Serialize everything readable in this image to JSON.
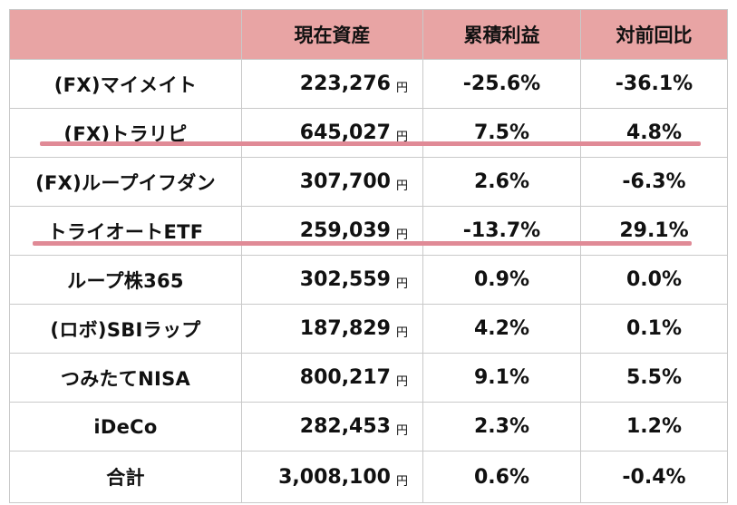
{
  "table": {
    "headers": [
      "",
      "現在資産",
      "累積利益",
      "対前回比"
    ],
    "unit": "円",
    "rows": [
      {
        "name": "(FX)マイメイト",
        "asset": "223,276",
        "profit": "-25.6%",
        "change": "-36.1%"
      },
      {
        "name": "(FX)トラリピ",
        "asset": "645,027",
        "profit": "7.5%",
        "change": "4.8%",
        "highlight": true
      },
      {
        "name": "(FX)ループイフダン",
        "asset": "307,700",
        "profit": "2.6%",
        "change": "-6.3%"
      },
      {
        "name": "トライオートETF",
        "asset": "259,039",
        "profit": "-13.7%",
        "change": "29.1%",
        "highlight": true
      },
      {
        "name": "ループ株365",
        "asset": "302,559",
        "profit": "0.9%",
        "change": "0.0%"
      },
      {
        "name": "(ロボ)SBIラップ",
        "asset": "187,829",
        "profit": "4.2%",
        "change": "0.1%"
      },
      {
        "name": "つみたてNISA",
        "asset": "800,217",
        "profit": "9.1%",
        "change": "5.5%"
      },
      {
        "name": "iDeCo",
        "asset": "282,453",
        "profit": "2.3%",
        "change": "1.2%"
      },
      {
        "name": "合計",
        "asset": "3,008,100",
        "profit": "0.6%",
        "change": "-0.4%"
      }
    ]
  },
  "colors": {
    "header_bg": "#e8a4a4",
    "highlight_underline": "#e08a96",
    "grid": "#c9c9c9"
  }
}
